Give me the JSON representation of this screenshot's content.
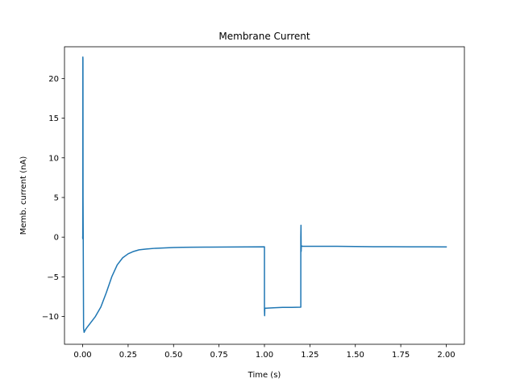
{
  "chart_data": {
    "type": "line",
    "title": "Membrane Current",
    "xlabel": "Time (s)",
    "ylabel": "Memb. current (nA)",
    "xlim": [
      -0.1,
      2.1
    ],
    "ylim": [
      -13.5,
      24.0
    ],
    "xticks": [
      0.0,
      0.25,
      0.5,
      0.75,
      1.0,
      1.25,
      1.5,
      1.75,
      2.0
    ],
    "xtick_labels": [
      "0.00",
      "0.25",
      "0.50",
      "0.75",
      "1.00",
      "1.25",
      "1.50",
      "1.75",
      "2.00"
    ],
    "yticks": [
      -10,
      -5,
      0,
      5,
      10,
      15,
      20
    ],
    "ytick_labels": [
      "−10",
      "−5",
      "0",
      "5",
      "10",
      "15",
      "20"
    ],
    "grid": false,
    "line_color": "#1f77b4",
    "series": [
      {
        "x": [
          0.0,
          0.0005,
          0.001,
          0.0015,
          0.002,
          0.003,
          0.005,
          0.008,
          0.012,
          0.02,
          0.04,
          0.07,
          0.1,
          0.13,
          0.16,
          0.19,
          0.22,
          0.25,
          0.28,
          0.31,
          0.35,
          0.4,
          0.45,
          0.5,
          0.55,
          0.6,
          0.7,
          0.8,
          0.9,
          1.0,
          1.0,
          1.001,
          1.002,
          1.003,
          1.01,
          1.05,
          1.1,
          1.15,
          1.2,
          1.2,
          1.201,
          1.202,
          1.203,
          1.21,
          1.3,
          1.4,
          1.5,
          1.6,
          1.7,
          1.8,
          1.9,
          2.0
        ],
        "y": [
          0.0,
          -0.2,
          22.7,
          22.4,
          5.0,
          0.0,
          -11.5,
          -12.0,
          -11.8,
          -11.5,
          -10.9,
          -10.0,
          -8.8,
          -7.0,
          -5.0,
          -3.5,
          -2.6,
          -2.1,
          -1.8,
          -1.6,
          -1.5,
          -1.4,
          -1.35,
          -1.3,
          -1.28,
          -1.27,
          -1.25,
          -1.24,
          -1.23,
          -1.22,
          -9.2,
          -9.9,
          -9.0,
          -8.95,
          -8.95,
          -8.9,
          -8.85,
          -8.85,
          -8.82,
          0.0,
          1.5,
          -1.8,
          -1.1,
          -1.15,
          -1.15,
          -1.15,
          -1.18,
          -1.2,
          -1.2,
          -1.22,
          -1.22,
          -1.23
        ]
      }
    ]
  }
}
